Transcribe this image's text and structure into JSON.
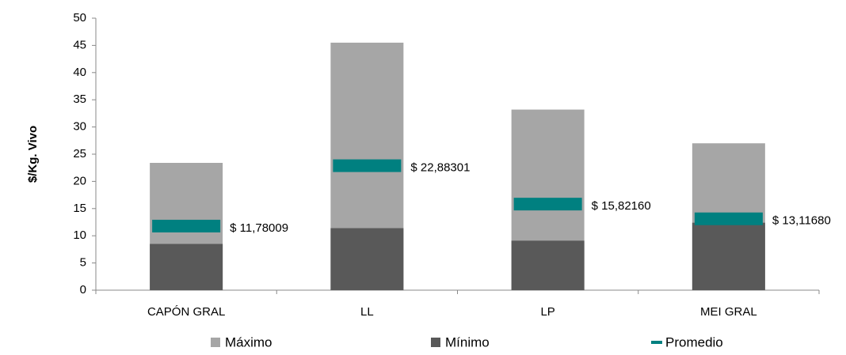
{
  "chart_data": {
    "type": "bar",
    "y_label": "$/Kg. Vivo",
    "categories": [
      "CAPÓN GRAL",
      "LL",
      "LP",
      "MEI GRAL"
    ],
    "series": [
      {
        "name": "Máximo",
        "color": "#a6a6a6",
        "values": [
          23.4,
          45.5,
          33.2,
          27.0
        ]
      },
      {
        "name": "Mínimo",
        "color": "#595959",
        "values": [
          8.5,
          11.4,
          9.1,
          12.4
        ]
      },
      {
        "name": "Promedio",
        "color": "#008080",
        "values": [
          11.78009,
          22.88301,
          15.8216,
          13.1168
        ],
        "value_labels": [
          "$ 11,78009",
          "$ 22,88301",
          "$ 15,82160",
          "$ 13,11680"
        ]
      }
    ],
    "ylim": [
      0,
      50
    ],
    "yticks": [
      0,
      5,
      10,
      15,
      20,
      25,
      30,
      35,
      40,
      45,
      50
    ]
  }
}
